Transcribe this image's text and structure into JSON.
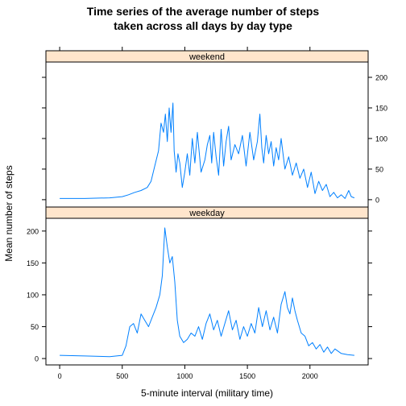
{
  "chart_data": {
    "type": "line",
    "title_lines": [
      "Time series of the average number of steps",
      "taken across all days by day type"
    ],
    "xlabel": "5-minute interval (military time)",
    "ylabel": "Mean number of steps",
    "xlim": [
      -110,
      2465
    ],
    "x_ticks": [
      0,
      500,
      1000,
      1500,
      2000
    ],
    "y_ticks": [
      0,
      50,
      100,
      150,
      200
    ],
    "line_color": "#0080ff",
    "strip_color": "#ffe5cc",
    "panels": [
      {
        "name": "weekend",
        "ylim": [
          -12,
          225
        ],
        "tick_side": "right",
        "x": [
          0,
          200,
          400,
          500,
          550,
          600,
          650,
          700,
          730,
          760,
          790,
          810,
          830,
          845,
          860,
          875,
          890,
          905,
          915,
          930,
          945,
          960,
          980,
          1000,
          1020,
          1040,
          1060,
          1080,
          1100,
          1130,
          1160,
          1180,
          1200,
          1215,
          1230,
          1250,
          1270,
          1290,
          1310,
          1330,
          1350,
          1370,
          1400,
          1430,
          1460,
          1490,
          1520,
          1550,
          1580,
          1600,
          1615,
          1630,
          1650,
          1670,
          1690,
          1710,
          1730,
          1750,
          1770,
          1800,
          1830,
          1860,
          1890,
          1920,
          1950,
          1980,
          2010,
          2040,
          2070,
          2100,
          2130,
          2160,
          2190,
          2220,
          2250,
          2280,
          2310,
          2330,
          2355
        ],
        "values": [
          2,
          2,
          3,
          5,
          8,
          12,
          15,
          20,
          30,
          55,
          80,
          125,
          110,
          140,
          95,
          150,
          110,
          158,
          80,
          45,
          75,
          60,
          20,
          45,
          75,
          40,
          100,
          60,
          110,
          45,
          65,
          90,
          105,
          60,
          110,
          70,
          40,
          115,
          55,
          95,
          120,
          65,
          90,
          75,
          105,
          55,
          110,
          65,
          95,
          140,
          85,
          60,
          105,
          75,
          95,
          55,
          85,
          65,
          100,
          50,
          70,
          40,
          60,
          35,
          50,
          20,
          45,
          10,
          30,
          15,
          25,
          5,
          12,
          3,
          8,
          2,
          15,
          5,
          3
        ]
      },
      {
        "name": "weekday",
        "ylim": [
          -10,
          220
        ],
        "tick_side": "left",
        "x": [
          0,
          200,
          400,
          500,
          530,
          560,
          590,
          620,
          650,
          680,
          710,
          740,
          770,
          800,
          820,
          840,
          860,
          880,
          900,
          920,
          940,
          960,
          990,
          1020,
          1050,
          1080,
          1110,
          1140,
          1170,
          1200,
          1230,
          1260,
          1290,
          1320,
          1350,
          1380,
          1410,
          1440,
          1470,
          1500,
          1530,
          1560,
          1590,
          1620,
          1650,
          1680,
          1710,
          1740,
          1770,
          1800,
          1820,
          1840,
          1860,
          1880,
          1900,
          1930,
          1960,
          1990,
          2020,
          2050,
          2080,
          2110,
          2140,
          2170,
          2200,
          2250,
          2300,
          2355
        ],
        "values": [
          5,
          4,
          3,
          5,
          20,
          50,
          55,
          40,
          70,
          60,
          50,
          65,
          80,
          100,
          130,
          205,
          175,
          150,
          160,
          120,
          60,
          35,
          25,
          30,
          40,
          35,
          50,
          30,
          55,
          70,
          45,
          60,
          35,
          55,
          75,
          45,
          60,
          30,
          50,
          35,
          55,
          40,
          80,
          50,
          75,
          45,
          65,
          40,
          85,
          105,
          80,
          70,
          95,
          75,
          60,
          40,
          35,
          20,
          25,
          15,
          22,
          10,
          18,
          8,
          15,
          8,
          6,
          5
        ]
      }
    ]
  }
}
